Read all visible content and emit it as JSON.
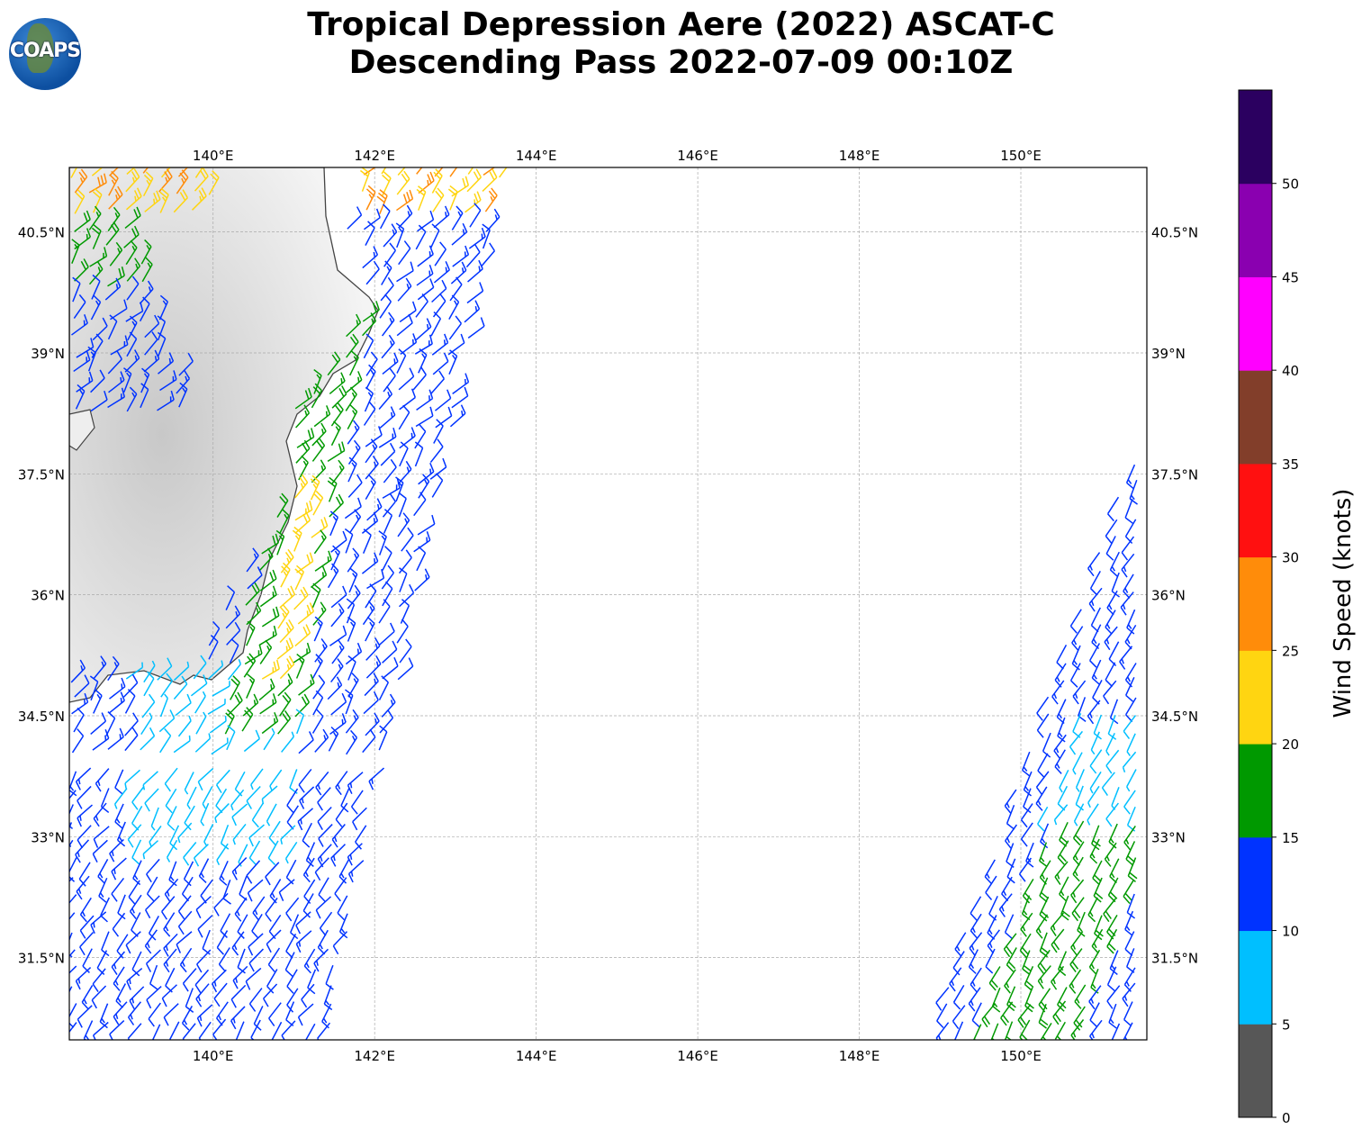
{
  "title_line1": "Tropical Depression Aere (2022) ASCAT-C",
  "title_line2": "Descending Pass 2022-07-09 00:10Z",
  "logo_text": "COAPS",
  "chart_data": {
    "type": "wind-barb map",
    "lon_range": [
      138.22,
      151.56
    ],
    "lat_range": [
      30.48,
      41.3
    ],
    "lon_ticks": [
      {
        "v": 140,
        "label": "140°E"
      },
      {
        "v": 142,
        "label": "142°E"
      },
      {
        "v": 144,
        "label": "144°E"
      },
      {
        "v": 146,
        "label": "146°E"
      },
      {
        "v": 148,
        "label": "148°E"
      },
      {
        "v": 150,
        "label": "150°E"
      }
    ],
    "lat_ticks": [
      {
        "v": 40.5,
        "label": "40.5°N"
      },
      {
        "v": 39,
        "label": "39°N"
      },
      {
        "v": 37.5,
        "label": "37.5°N"
      },
      {
        "v": 36,
        "label": "36°N"
      },
      {
        "v": 34.5,
        "label": "34.5°N"
      },
      {
        "v": 33,
        "label": "33°N"
      },
      {
        "v": 31.5,
        "label": "31.5°N"
      }
    ],
    "colorbar": {
      "label": "Wind Speed (knots)",
      "ticks": [
        "0",
        "5",
        "10",
        "15",
        "20",
        "25",
        "30",
        "35",
        "40",
        "45",
        "50"
      ],
      "bins": [
        0,
        5,
        10,
        15,
        20,
        25,
        30,
        35,
        40,
        45,
        50,
        55
      ],
      "colors": [
        "#575757",
        "#00bfff",
        "#0033ff",
        "#009900",
        "#ffd511",
        "#ff8c0a",
        "#ff1010",
        "#823e2a",
        "#ff00ff",
        "#8a00b0",
        "#2b0060"
      ]
    },
    "grid": true
  }
}
